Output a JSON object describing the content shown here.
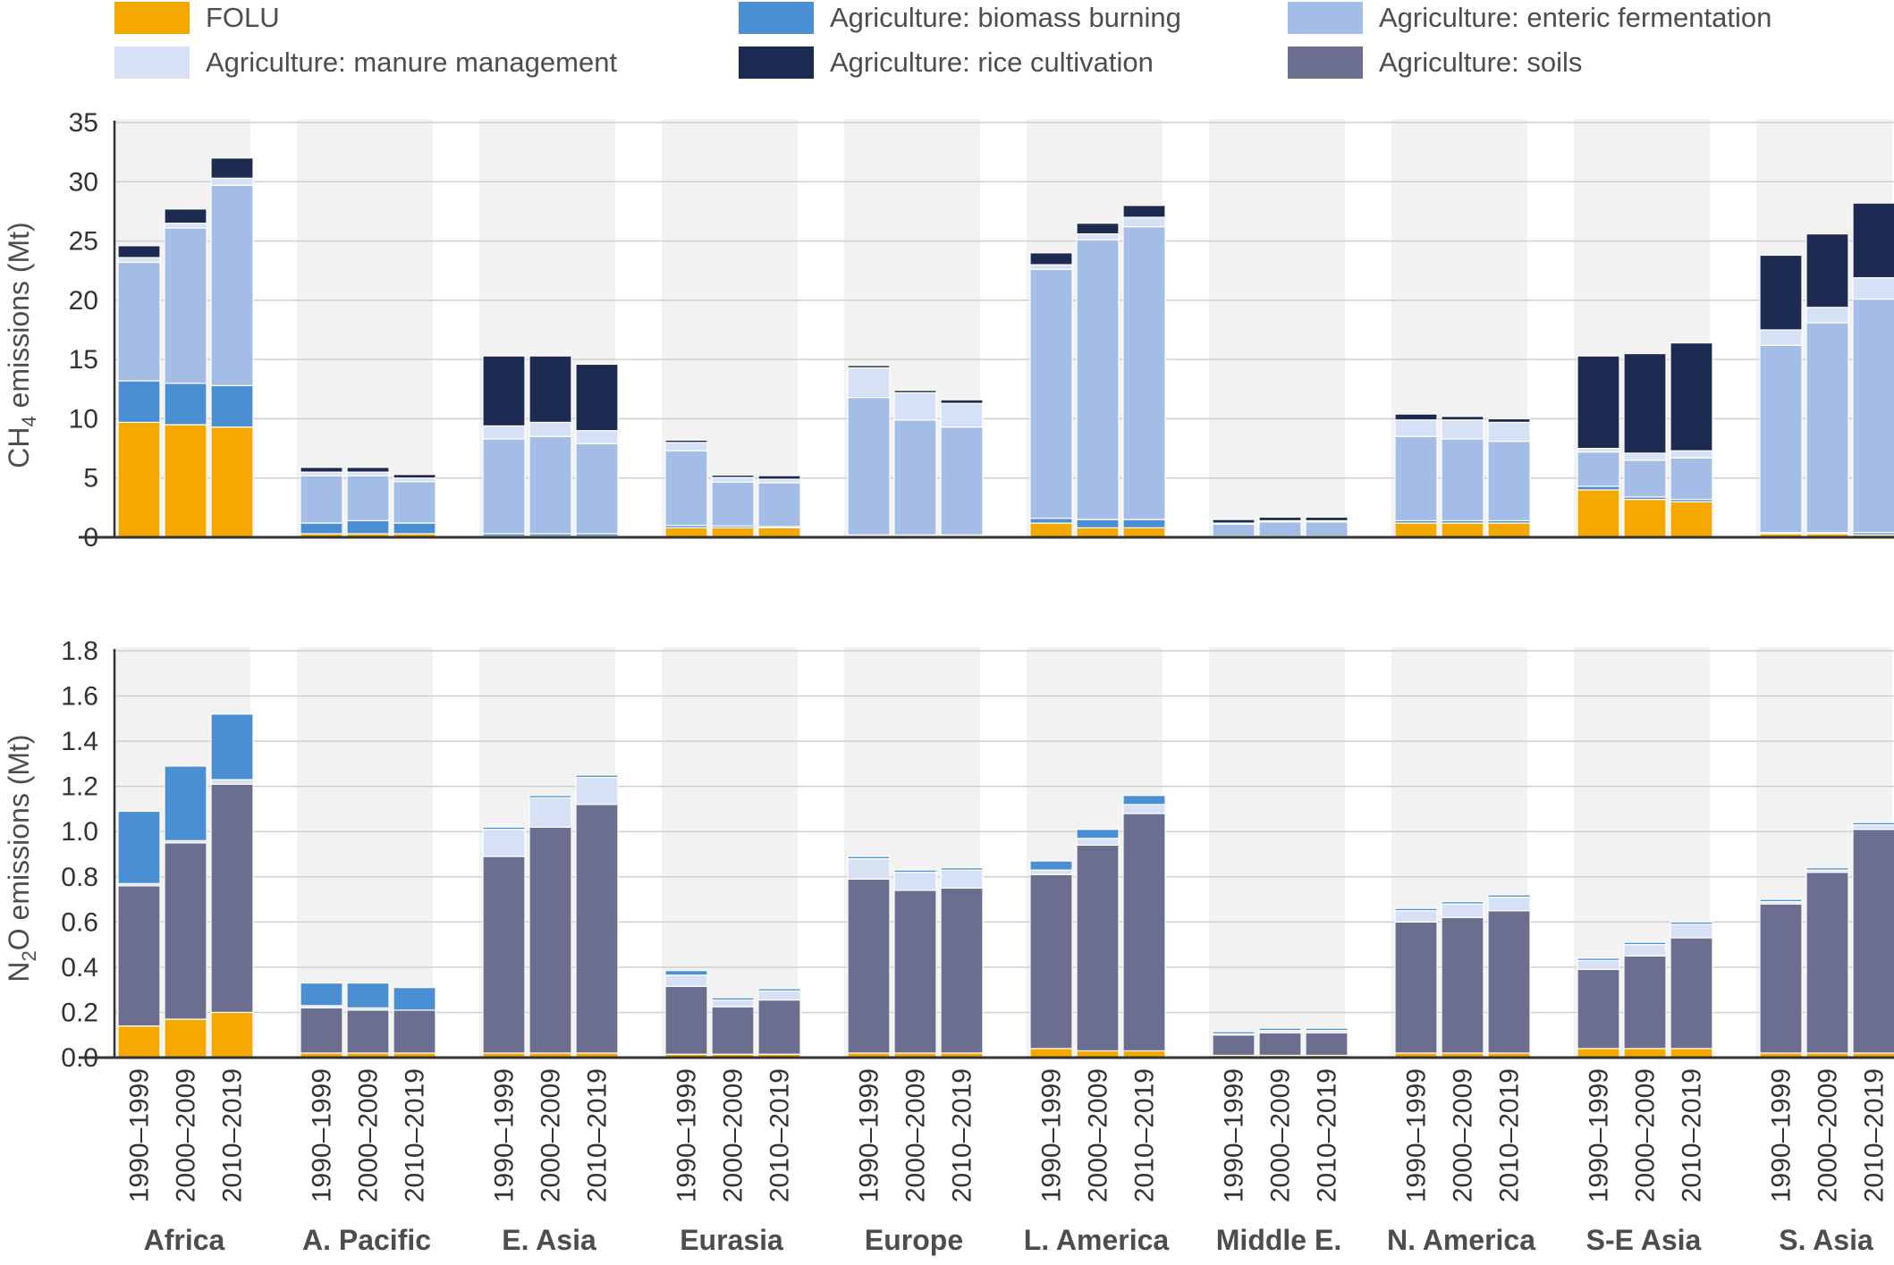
{
  "legend": [
    {
      "key": "folu",
      "label": "FOLU",
      "color": "#f5a800"
    },
    {
      "key": "biomass",
      "label": "Agriculture: biomass burning",
      "color": "#4a8fd2"
    },
    {
      "key": "enteric",
      "label": "Agriculture: enteric fermentation",
      "color": "#a3bde6"
    },
    {
      "key": "manure",
      "label": "Agriculture: manure management",
      "color": "#d7e1f5"
    },
    {
      "key": "rice",
      "label": "Agriculture: rice cultivation",
      "color": "#1d2b52"
    },
    {
      "key": "soils",
      "label": "Agriculture: soils",
      "color": "#6b6e8e"
    }
  ],
  "chart_data": [
    {
      "type": "bar",
      "stacked": true,
      "ylabel": "CH4 emissions (Mt)",
      "ylabel_main": "CH",
      "ylabel_sub": "4",
      "ylabel_rest": " emissions (Mt)",
      "ylim": [
        0,
        35
      ],
      "yticks": [
        0,
        5,
        10,
        15,
        20,
        25,
        30,
        35
      ],
      "ytick_labels": [
        "0",
        "5",
        "10",
        "15",
        "20",
        "25",
        "30",
        "35"
      ],
      "regions": [
        "Africa",
        "A. Pacific",
        "E. Asia",
        "Eurasia",
        "Europe",
        "L. America",
        "Middle E.",
        "N. America",
        "S-E Asia",
        "S. Asia"
      ],
      "periods": [
        "1990–1999",
        "2000–2009",
        "2010–2019"
      ],
      "series": [
        {
          "key": "folu",
          "values": [
            [
              9.7,
              9.5,
              9.3
            ],
            [
              0.3,
              0.3,
              0.3
            ],
            [
              0.1,
              0.1,
              0.1
            ],
            [
              0.8,
              0.8,
              0.8
            ],
            [
              0.1,
              0.1,
              0.1
            ],
            [
              1.2,
              0.8,
              0.8
            ],
            [
              0.05,
              0.05,
              0.05
            ],
            [
              1.2,
              1.2,
              1.2
            ],
            [
              4.0,
              3.2,
              3.0
            ],
            [
              0.3,
              0.3,
              0.2
            ]
          ]
        },
        {
          "key": "biomass",
          "values": [
            [
              3.5,
              3.5,
              3.5
            ],
            [
              0.9,
              1.1,
              0.9
            ],
            [
              0.2,
              0.2,
              0.2
            ],
            [
              0.2,
              0.15,
              0.1
            ],
            [
              0.1,
              0.1,
              0.1
            ],
            [
              0.4,
              0.7,
              0.7
            ],
            [
              0.05,
              0.05,
              0.05
            ],
            [
              0.2,
              0.2,
              0.2
            ],
            [
              0.3,
              0.2,
              0.2
            ],
            [
              0.1,
              0.1,
              0.2
            ]
          ]
        },
        {
          "key": "enteric",
          "values": [
            [
              10.0,
              13.1,
              16.9
            ],
            [
              4.0,
              3.8,
              3.5
            ],
            [
              8.0,
              8.2,
              7.6
            ],
            [
              6.3,
              3.7,
              3.7
            ],
            [
              11.6,
              9.7,
              9.1
            ],
            [
              21.0,
              23.6,
              24.7
            ],
            [
              1.0,
              1.2,
              1.2
            ],
            [
              7.1,
              6.9,
              6.7
            ],
            [
              2.9,
              3.1,
              3.5
            ],
            [
              15.8,
              17.7,
              19.7
            ]
          ]
        },
        {
          "key": "manure",
          "values": [
            [
              0.4,
              0.4,
              0.6
            ],
            [
              0.3,
              0.3,
              0.3
            ],
            [
              1.1,
              1.2,
              1.1
            ],
            [
              0.7,
              0.4,
              0.3
            ],
            [
              2.5,
              2.3,
              2.0
            ],
            [
              0.4,
              0.5,
              0.8
            ],
            [
              0.1,
              0.1,
              0.1
            ],
            [
              1.4,
              1.6,
              1.6
            ],
            [
              0.3,
              0.6,
              0.6
            ],
            [
              1.3,
              1.3,
              1.8
            ]
          ]
        },
        {
          "key": "rice",
          "values": [
            [
              1.0,
              1.2,
              1.7
            ],
            [
              0.4,
              0.4,
              0.3
            ],
            [
              5.9,
              5.6,
              5.6
            ],
            [
              0.2,
              0.2,
              0.3
            ],
            [
              0.2,
              0.2,
              0.3
            ],
            [
              1.0,
              0.9,
              1.0
            ],
            [
              0.3,
              0.3,
              0.3
            ],
            [
              0.5,
              0.3,
              0.3
            ],
            [
              7.8,
              8.4,
              9.1
            ],
            [
              6.3,
              6.2,
              6.3
            ]
          ]
        }
      ]
    },
    {
      "type": "bar",
      "stacked": true,
      "ylabel": "N2O emissions (Mt)",
      "ylabel_main": "N",
      "ylabel_sub": "2",
      "ylabel_rest": "O emissions (Mt)",
      "ylim": [
        0,
        1.8
      ],
      "yticks": [
        0,
        0.2,
        0.4,
        0.6,
        0.8,
        1.0,
        1.2,
        1.4,
        1.6,
        1.8
      ],
      "ytick_labels": [
        "0.0",
        "0.2",
        "0.4",
        "0.6",
        "0.8",
        "1.0",
        "1.2",
        "1.4",
        "1.6",
        "1.8"
      ],
      "regions": [
        "Africa",
        "A. Pacific",
        "E. Asia",
        "Eurasia",
        "Europe",
        "L. America",
        "Middle E.",
        "N. America",
        "S-E Asia",
        "S. Asia"
      ],
      "periods": [
        "1990–1999",
        "2000–2009",
        "2010–2019"
      ],
      "series": [
        {
          "key": "folu",
          "values": [
            [
              0.14,
              0.17,
              0.2
            ],
            [
              0.02,
              0.02,
              0.02
            ],
            [
              0.02,
              0.02,
              0.02
            ],
            [
              0.015,
              0.015,
              0.015
            ],
            [
              0.02,
              0.02,
              0.02
            ],
            [
              0.04,
              0.03,
              0.03
            ],
            [
              0.01,
              0.01,
              0.01
            ],
            [
              0.02,
              0.02,
              0.02
            ],
            [
              0.04,
              0.04,
              0.04
            ],
            [
              0.02,
              0.02,
              0.02
            ]
          ]
        },
        {
          "key": "soils",
          "values": [
            [
              0.62,
              0.78,
              1.01
            ],
            [
              0.2,
              0.19,
              0.19
            ],
            [
              0.87,
              1.0,
              1.1
            ],
            [
              0.3,
              0.21,
              0.24
            ],
            [
              0.77,
              0.72,
              0.73
            ],
            [
              0.77,
              0.91,
              1.05
            ],
            [
              0.09,
              0.1,
              0.1
            ],
            [
              0.58,
              0.6,
              0.63
            ],
            [
              0.35,
              0.41,
              0.49
            ],
            [
              0.66,
              0.8,
              0.99
            ]
          ]
        },
        {
          "key": "manure",
          "values": [
            [
              0.01,
              0.01,
              0.02
            ],
            [
              0.01,
              0.01,
              0.0
            ],
            [
              0.12,
              0.13,
              0.12
            ],
            [
              0.05,
              0.03,
              0.04
            ],
            [
              0.09,
              0.08,
              0.08
            ],
            [
              0.02,
              0.03,
              0.04
            ],
            [
              0.005,
              0.01,
              0.01
            ],
            [
              0.05,
              0.06,
              0.06
            ],
            [
              0.04,
              0.05,
              0.06
            ],
            [
              0.01,
              0.01,
              0.02
            ]
          ]
        },
        {
          "key": "biomass",
          "values": [
            [
              0.32,
              0.33,
              0.29
            ],
            [
              0.1,
              0.11,
              0.1
            ],
            [
              0.01,
              0.01,
              0.01
            ],
            [
              0.02,
              0.01,
              0.01
            ],
            [
              0.01,
              0.01,
              0.01
            ],
            [
              0.04,
              0.04,
              0.04
            ],
            [
              0.01,
              0.01,
              0.01
            ],
            [
              0.01,
              0.01,
              0.01
            ],
            [
              0.01,
              0.01,
              0.01
            ],
            [
              0.01,
              0.01,
              0.01
            ]
          ]
        }
      ]
    }
  ]
}
